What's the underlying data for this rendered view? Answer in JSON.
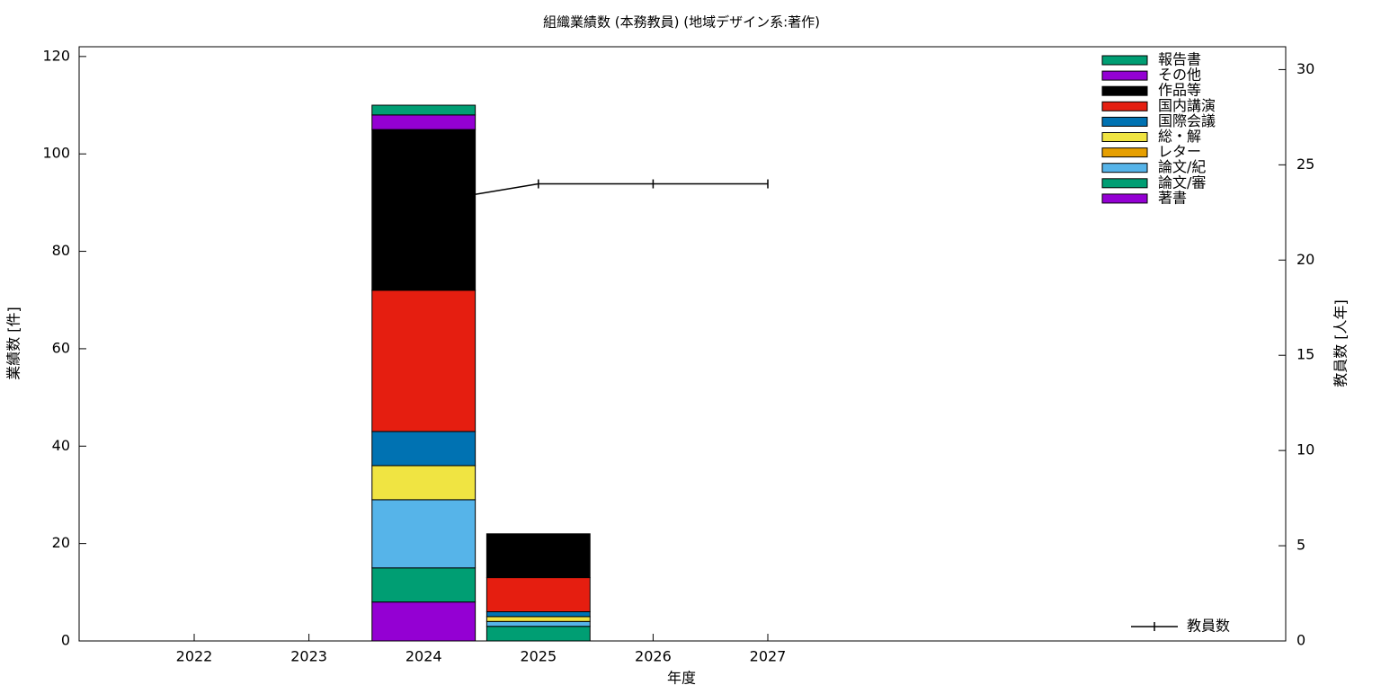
{
  "chart_data": {
    "type": "stacked-bar-line",
    "title": "組織業績数 (本務教員) (地域デザイン系:著作)",
    "xlabel": "年度",
    "ylabel": "業績数 [件]",
    "y2label": "教員数 [人年]",
    "categories": [
      "2022",
      "2023",
      "2024",
      "2025",
      "2026",
      "2027"
    ],
    "series": [
      {
        "name": "著書",
        "color": "#9400d3",
        "values": [
          0,
          0,
          8,
          0,
          null,
          null
        ]
      },
      {
        "name": "論文/審",
        "color": "#009e73",
        "values": [
          0,
          0,
          7,
          3,
          null,
          null
        ]
      },
      {
        "name": "論文/紀",
        "color": "#56b4e9",
        "values": [
          0,
          0,
          14,
          1,
          null,
          null
        ]
      },
      {
        "name": "レター",
        "color": "#e69f00",
        "values": [
          0,
          0,
          0,
          0,
          null,
          null
        ]
      },
      {
        "name": "総・解",
        "color": "#f0e442",
        "values": [
          0,
          0,
          7,
          1,
          null,
          null
        ]
      },
      {
        "name": "国際会議",
        "color": "#0072b2",
        "values": [
          0,
          0,
          7,
          1,
          null,
          null
        ]
      },
      {
        "name": "国内講演",
        "color": "#e51e10",
        "values": [
          0,
          0,
          29,
          7,
          null,
          null
        ]
      },
      {
        "name": "作品等",
        "color": "#000000",
        "values": [
          0,
          0,
          33,
          9,
          null,
          null
        ]
      },
      {
        "name": "その他",
        "color": "#9400d3",
        "values": [
          0,
          0,
          3,
          0,
          null,
          null
        ]
      },
      {
        "name": "報告書",
        "color": "#009e73",
        "values": [
          0,
          0,
          2,
          0,
          null,
          null
        ]
      },
      {
        "name": "教員数",
        "color": "#000000",
        "type": "line",
        "axis": "y2",
        "values": [
          null,
          null,
          23,
          24,
          24,
          24
        ]
      }
    ],
    "ylim": [
      0,
      122
    ],
    "yticks": [
      0,
      20,
      40,
      60,
      80,
      100,
      120
    ],
    "y2lim": [
      0,
      31.2
    ],
    "y2ticks": [
      0,
      5,
      10,
      15,
      20,
      25,
      30
    ],
    "legend": "top-right"
  }
}
